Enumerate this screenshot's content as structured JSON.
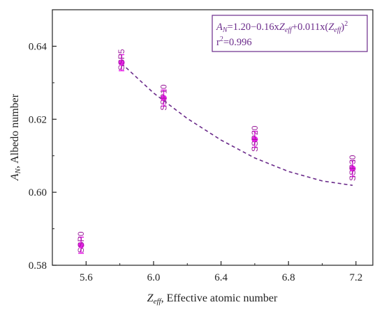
{
  "chart_data": {
    "type": "scatter",
    "xlabel_symbol": "Z",
    "xlabel_sub": "eff",
    "xlabel_rest": ", Effective atomic number",
    "ylabel_symbol": "A",
    "ylabel_sub": "N",
    "ylabel_rest": ", Albedo number",
    "xlim": [
      5.4,
      7.3
    ],
    "ylim": [
      0.58,
      0.65
    ],
    "xticks": [
      "5.6",
      "6.0",
      "6.4",
      "6.8",
      "7.2"
    ],
    "yticks": [
      "0.58",
      "0.60",
      "0.62",
      "0.64"
    ],
    "grid": false,
    "color": "#e81ee8",
    "fit_color": "#6a2a8a",
    "points": [
      {
        "label": "SSP0",
        "x": 5.57,
        "y": 0.5855,
        "err": 0.0022
      },
      {
        "label": "SSP5",
        "x": 5.81,
        "y": 0.6355,
        "err": 0.0022
      },
      {
        "label": "SSP10",
        "x": 6.06,
        "y": 0.6258,
        "err": 0.0022
      },
      {
        "label": "SSP20",
        "x": 6.6,
        "y": 0.6145,
        "err": 0.0022
      },
      {
        "label": "SSP30",
        "x": 7.18,
        "y": 0.6065,
        "err": 0.0022
      }
    ],
    "fit": {
      "x_range": [
        5.81,
        7.18
      ],
      "curve": [
        [
          5.81,
          0.6353
        ],
        [
          6.0,
          0.6272
        ],
        [
          6.2,
          0.6202
        ],
        [
          6.4,
          0.6143
        ],
        [
          6.6,
          0.6094
        ],
        [
          6.8,
          0.6057
        ],
        [
          7.0,
          0.6031
        ],
        [
          7.18,
          0.6019
        ]
      ],
      "eq_parts": {
        "a": "A",
        "a_sub": "N",
        "mid1": "=1.20−0.16x",
        "z": "Z",
        "z_sub": "eff",
        "mid2": "+0.011x(",
        "z2": "Z",
        "z2_sub": "eff",
        "end": ")",
        "sup": "2"
      },
      "r2_base": "r",
      "r2_sup": "2",
      "r2_val": "=0.996"
    }
  }
}
